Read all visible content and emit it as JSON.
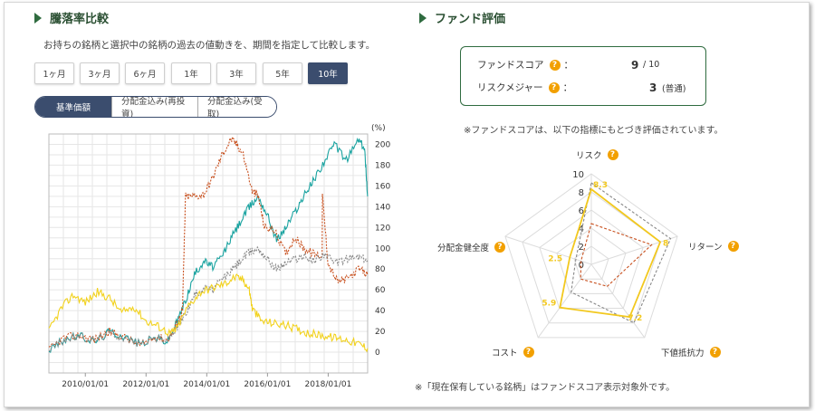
{
  "left": {
    "title": "騰落率比較",
    "description": "お持ちの銘柄と選択中の銘柄の過去の値動きを、期間を指定して比較します。",
    "periods": [
      "1ヶ月",
      "3ヶ月",
      "6ヶ月",
      "1年",
      "3年",
      "5年",
      "10年"
    ],
    "active_period": "10年",
    "modes": [
      "基準価額",
      "分配金込み(再投資)",
      "分配金込み(受取)"
    ],
    "active_mode": "基準価額"
  },
  "chart_data": {
    "type": "line",
    "title": "騰落率比較",
    "ylabel": "(%)",
    "xlabel": "",
    "ylim": [
      -20,
      210
    ],
    "y_ticks": [
      200,
      180,
      160,
      140,
      120,
      100,
      80,
      60,
      40,
      20,
      0
    ],
    "x_ticks": [
      "2010/01/01",
      "2012/01/01",
      "2014/01/01",
      "2016/01/01",
      "2018/01/01"
    ],
    "x_range": [
      2008.8,
      2019.3
    ],
    "series": [
      {
        "name": "teal",
        "color": "#1aa3a0",
        "style": "solid",
        "x": [
          2008.8,
          2009.3,
          2009.8,
          2010.3,
          2010.8,
          2011.3,
          2011.8,
          2012.3,
          2012.7,
          2013.0,
          2013.3,
          2013.6,
          2013.9,
          2014.2,
          2014.5,
          2014.8,
          2015.1,
          2015.4,
          2015.7,
          2016.0,
          2016.3,
          2016.6,
          2016.9,
          2017.2,
          2017.5,
          2017.9,
          2018.2,
          2018.6,
          2019.0,
          2019.2,
          2019.3
        ],
        "y": [
          2,
          12,
          16,
          10,
          20,
          15,
          8,
          14,
          10,
          28,
          50,
          75,
          88,
          82,
          92,
          110,
          125,
          140,
          150,
          132,
          108,
          120,
          135,
          150,
          165,
          185,
          200,
          185,
          205,
          195,
          150
        ]
      },
      {
        "name": "orange",
        "color": "#c8501e",
        "style": "dashed",
        "x": [
          2008.8,
          2009.3,
          2009.8,
          2010.3,
          2010.8,
          2011.3,
          2011.8,
          2012.3,
          2012.7,
          2013.0,
          2013.2,
          2013.3,
          2013.6,
          2013.9,
          2014.2,
          2014.5,
          2014.8,
          2015.0,
          2015.2,
          2015.5,
          2015.7,
          2015.9,
          2016.2,
          2016.6,
          2016.9,
          2017.2,
          2017.5,
          2017.8,
          2017.81,
          2018.0,
          2018.3,
          2018.6,
          2019.0,
          2019.3
        ],
        "y": [
          2,
          14,
          16,
          12,
          20,
          14,
          6,
          15,
          12,
          26,
          40,
          150,
          150,
          152,
          168,
          190,
          205,
          200,
          190,
          155,
          150,
          120,
          118,
          95,
          110,
          100,
          95,
          92,
          150,
          85,
          68,
          70,
          80,
          74
        ]
      },
      {
        "name": "gray",
        "color": "#888888",
        "style": "dashed",
        "x": [
          2008.8,
          2009.3,
          2009.8,
          2010.3,
          2010.8,
          2011.3,
          2011.8,
          2012.3,
          2012.7,
          2013.0,
          2013.3,
          2013.6,
          2013.9,
          2014.2,
          2014.5,
          2014.8,
          2015.1,
          2015.4,
          2015.7,
          2016.0,
          2016.3,
          2016.6,
          2016.9,
          2017.2,
          2017.5,
          2017.9,
          2018.2,
          2018.6,
          2019.0,
          2019.3
        ],
        "y": [
          3,
          12,
          15,
          12,
          18,
          14,
          8,
          14,
          12,
          22,
          38,
          55,
          62,
          60,
          70,
          78,
          88,
          96,
          100,
          90,
          80,
          86,
          90,
          92,
          88,
          95,
          85,
          90,
          92,
          88
        ]
      },
      {
        "name": "yellow",
        "color": "#f2d21e",
        "style": "solid",
        "x": [
          2008.8,
          2009.2,
          2009.6,
          2010.0,
          2010.4,
          2010.8,
          2011.2,
          2011.6,
          2012.0,
          2012.4,
          2012.8,
          2013.0,
          2013.4,
          2013.8,
          2014.2,
          2014.6,
          2014.9,
          2015.2,
          2015.4,
          2015.5,
          2015.8,
          2016.2,
          2016.6,
          2017.0,
          2017.4,
          2017.8,
          2018.2,
          2018.6,
          2019.0,
          2019.3
        ],
        "y": [
          20,
          42,
          55,
          48,
          58,
          52,
          38,
          44,
          30,
          25,
          18,
          22,
          45,
          58,
          62,
          66,
          72,
          70,
          60,
          42,
          30,
          28,
          26,
          22,
          18,
          16,
          14,
          12,
          8,
          4
        ]
      }
    ]
  },
  "right": {
    "title": "ファンド評価",
    "score_label": "ファンドスコア",
    "score_value": "9",
    "score_max": "/ 10",
    "risk_label": "リスクメジャー",
    "risk_value": "3",
    "risk_text": "(普通)",
    "colon": "：",
    "help_glyph": "?",
    "note_top": "※ファンドスコアは、以下の指標にもとづき評価されています。",
    "note_bottom": "※「現在保有している銘柄」はファンドスコア表示対象外です。",
    "radar_axes": [
      "リスク",
      "リターン",
      "下値抵抗力",
      "コスト",
      "分配金健全度"
    ],
    "radar_scale_labels": [
      "10",
      "8",
      "6",
      "4",
      "2",
      "0"
    ],
    "radar_series": [
      {
        "name": "fund",
        "color": "#f2c81e",
        "values": [
          8.3,
          8.0,
          7.2,
          5.9,
          2.5
        ],
        "value_labels": [
          "8.3",
          "8",
          "7.2",
          "5.9",
          "2.5"
        ]
      },
      {
        "name": "compare-gray",
        "color": "#888888",
        "values": [
          9.0,
          9.2,
          8.0,
          3.8,
          1.8
        ]
      },
      {
        "name": "compare-orange",
        "color": "#c8501e",
        "values": [
          4.5,
          7.0,
          3.0,
          2.0,
          1.2
        ]
      }
    ]
  }
}
